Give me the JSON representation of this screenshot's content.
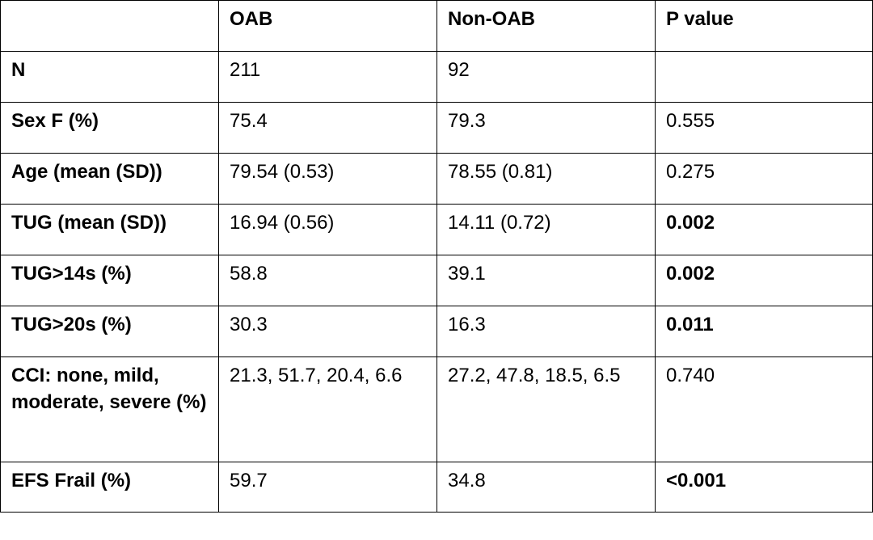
{
  "table": {
    "headers": [
      "",
      "OAB",
      "Non-OAB",
      "P value"
    ],
    "rows": [
      {
        "label": "N",
        "oab": "211",
        "non_oab": "92",
        "p": ""
      },
      {
        "label": "Sex F (%)",
        "oab": "75.4",
        "non_oab": "79.3",
        "p": "0.555"
      },
      {
        "label": "Age (mean (SD))",
        "oab": "79.54 (0.53)",
        "non_oab": "78.55 (0.81)",
        "p": "0.275"
      },
      {
        "label": "TUG (mean (SD))",
        "oab": "16.94 (0.56)",
        "non_oab": "14.11 (0.72)",
        "p": "0.002"
      },
      {
        "label": "TUG>14s (%)",
        "oab": "58.8",
        "non_oab": "39.1",
        "p": "0.002"
      },
      {
        "label": "TUG>20s (%)",
        "oab": "30.3",
        "non_oab": "16.3",
        "p": "0.011"
      },
      {
        "label": "CCI: none, mild, moderate, severe (%)",
        "oab": "21.3, 51.7, 20.4, 6.6",
        "non_oab": "27.2, 47.8, 18.5, 6.5",
        "p": "0.740"
      },
      {
        "label": "EFS Frail (%)",
        "oab": "59.7",
        "non_oab": "34.8",
        "p": "<0.001"
      }
    ]
  }
}
